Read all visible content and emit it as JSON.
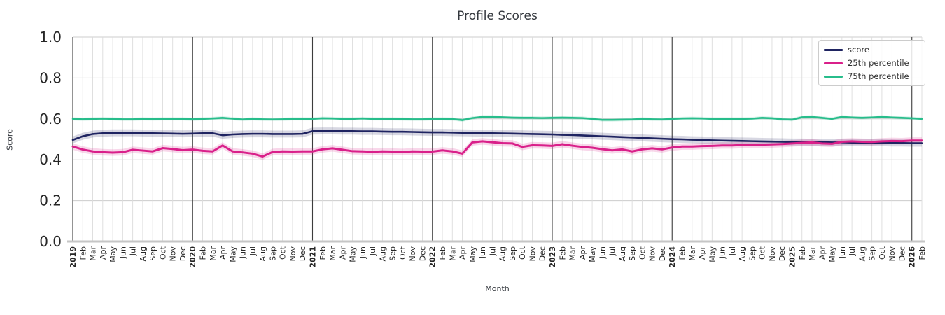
{
  "chart_data": {
    "type": "line",
    "title": "Profile Scores",
    "xlabel": "Month",
    "ylabel": "Score",
    "ylim": [
      0.0,
      1.0
    ],
    "y_ticks": [
      "0.0",
      "0.2",
      "0.4",
      "0.6",
      "0.8",
      "1.0"
    ],
    "grid": true,
    "legend_position": "upper right",
    "x_labels": [
      "2019",
      "Feb",
      "Mar",
      "Apr",
      "May",
      "Jun",
      "Jul",
      "Aug",
      "Sep",
      "Oct",
      "Nov",
      "Dec",
      "2020",
      "Feb",
      "Mar",
      "Apr",
      "May",
      "Jun",
      "Jul",
      "Aug",
      "Sep",
      "Oct",
      "Nov",
      "Dec",
      "2021",
      "Feb",
      "Mar",
      "Apr",
      "May",
      "Jun",
      "Jul",
      "Aug",
      "Sep",
      "Oct",
      "Nov",
      "Dec",
      "2022",
      "Feb",
      "Mar",
      "Apr",
      "May",
      "Jun",
      "Jul",
      "Aug",
      "Sep",
      "Oct",
      "Nov",
      "Dec",
      "2023",
      "Feb",
      "Mar",
      "Apr",
      "May",
      "Jun",
      "Jul",
      "Aug",
      "Sep",
      "Oct",
      "Nov",
      "Dec",
      "2024",
      "Feb",
      "Mar",
      "Apr",
      "May",
      "Jun",
      "Jul",
      "Aug",
      "Sep",
      "Oct",
      "Nov",
      "Dec",
      "2025",
      "Feb",
      "Mar",
      "Apr",
      "May",
      "Jun",
      "Jul",
      "Aug",
      "Sep",
      "Oct",
      "Nov",
      "Dec",
      "2026",
      "Feb"
    ],
    "series": [
      {
        "name": "score",
        "color": "#1f2461",
        "ci_halfwidth": 0.017,
        "values": [
          0.497,
          0.515,
          0.526,
          0.53,
          0.532,
          0.532,
          0.532,
          0.531,
          0.53,
          0.529,
          0.528,
          0.527,
          0.528,
          0.53,
          0.53,
          0.52,
          0.524,
          0.526,
          0.527,
          0.527,
          0.526,
          0.526,
          0.526,
          0.527,
          0.54,
          0.541,
          0.541,
          0.54,
          0.54,
          0.539,
          0.539,
          0.538,
          0.537,
          0.537,
          0.536,
          0.535,
          0.534,
          0.534,
          0.533,
          0.532,
          0.531,
          0.53,
          0.53,
          0.529,
          0.528,
          0.527,
          0.526,
          0.525,
          0.524,
          0.522,
          0.521,
          0.519,
          0.517,
          0.515,
          0.513,
          0.511,
          0.509,
          0.507,
          0.505,
          0.503,
          0.501,
          0.5,
          0.498,
          0.497,
          0.495,
          0.494,
          0.493,
          0.492,
          0.491,
          0.49,
          0.489,
          0.488,
          0.487,
          0.487,
          0.486,
          0.486,
          0.485,
          0.485,
          0.484,
          0.484,
          0.483,
          0.483,
          0.482,
          0.482,
          0.481,
          0.481
        ]
      },
      {
        "name": "25th percentile",
        "color": "#d9208a",
        "ci_halfwidth": 0.016,
        "values": [
          0.465,
          0.45,
          0.441,
          0.437,
          0.435,
          0.437,
          0.449,
          0.445,
          0.441,
          0.457,
          0.453,
          0.447,
          0.45,
          0.444,
          0.441,
          0.47,
          0.441,
          0.436,
          0.43,
          0.416,
          0.438,
          0.441,
          0.44,
          0.441,
          0.441,
          0.451,
          0.456,
          0.449,
          0.442,
          0.441,
          0.439,
          0.441,
          0.44,
          0.438,
          0.441,
          0.44,
          0.44,
          0.446,
          0.441,
          0.43,
          0.485,
          0.49,
          0.486,
          0.481,
          0.48,
          0.463,
          0.471,
          0.47,
          0.468,
          0.476,
          0.469,
          0.463,
          0.459,
          0.452,
          0.446,
          0.451,
          0.441,
          0.451,
          0.456,
          0.451,
          0.46,
          0.465,
          0.465,
          0.467,
          0.468,
          0.47,
          0.47,
          0.472,
          0.473,
          0.474,
          0.475,
          0.477,
          0.48,
          0.483,
          0.485,
          0.48,
          0.478,
          0.488,
          0.49,
          0.488,
          0.487,
          0.49,
          0.492,
          0.491,
          0.494,
          0.494
        ]
      },
      {
        "name": "75th percentile",
        "color": "#27bd8b",
        "ci_halfwidth": 0.008,
        "values": [
          0.6,
          0.598,
          0.6,
          0.601,
          0.6,
          0.598,
          0.598,
          0.6,
          0.599,
          0.6,
          0.6,
          0.6,
          0.598,
          0.6,
          0.602,
          0.605,
          0.601,
          0.597,
          0.6,
          0.598,
          0.597,
          0.598,
          0.6,
          0.6,
          0.6,
          0.603,
          0.602,
          0.6,
          0.6,
          0.602,
          0.6,
          0.6,
          0.6,
          0.599,
          0.598,
          0.598,
          0.6,
          0.6,
          0.599,
          0.594,
          0.604,
          0.61,
          0.61,
          0.608,
          0.606,
          0.605,
          0.605,
          0.604,
          0.605,
          0.606,
          0.605,
          0.604,
          0.6,
          0.595,
          0.595,
          0.596,
          0.597,
          0.6,
          0.598,
          0.597,
          0.6,
          0.602,
          0.603,
          0.602,
          0.6,
          0.6,
          0.6,
          0.6,
          0.601,
          0.605,
          0.603,
          0.598,
          0.596,
          0.608,
          0.61,
          0.605,
          0.6,
          0.61,
          0.607,
          0.605,
          0.607,
          0.61,
          0.607,
          0.605,
          0.603,
          0.6
        ]
      }
    ],
    "style": {
      "grid_minor_color": "#dcdcdc",
      "grid_major_color": "#cccccc",
      "year_line_color": "#3d3d3d",
      "baseline_color": "#c6c6c6",
      "tick_label_color": "#262626",
      "band_opacity": 0.18
    }
  }
}
